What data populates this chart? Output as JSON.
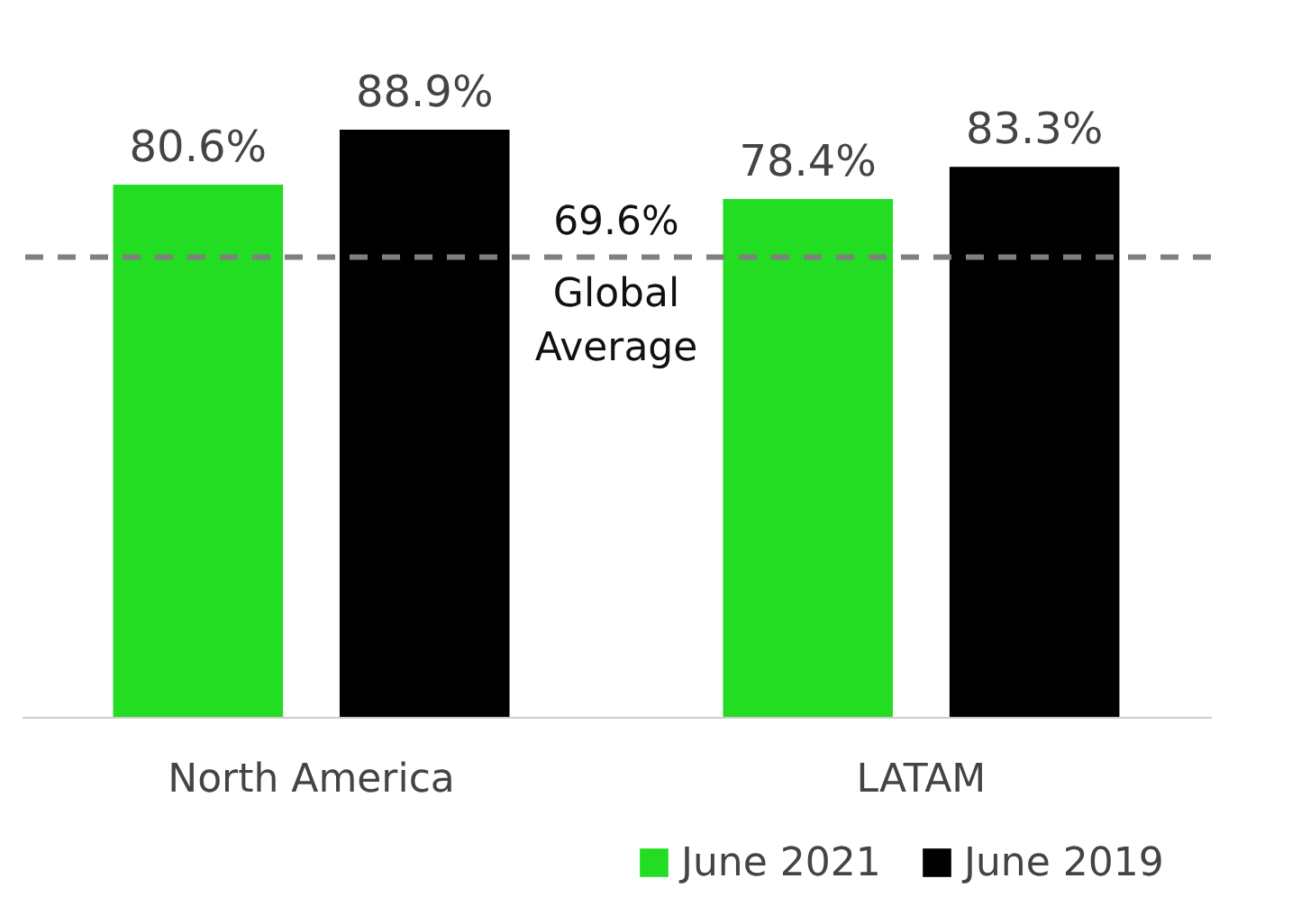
{
  "chart_data": {
    "type": "bar",
    "categories": [
      "North America",
      "LATAM"
    ],
    "series": [
      {
        "name": "June 2021",
        "color": "#22dd22",
        "values": [
          80.6,
          78.4
        ],
        "value_labels": [
          "80.6%",
          "78.4%"
        ]
      },
      {
        "name": "June 2019",
        "color": "#000000",
        "values": [
          88.9,
          83.3
        ],
        "value_labels": [
          "88.9%",
          "83.3%"
        ]
      }
    ],
    "ref_lines": [
      {
        "axis": "y",
        "value": 69.6,
        "label": "Global Average",
        "color": "#808080",
        "line_style": "dashed"
      }
    ],
    "annotations": [
      {
        "text": "69.6%",
        "y": 69.6
      }
    ],
    "tick_labels": "x",
    "grid": false,
    "legend": "bottom right"
  }
}
